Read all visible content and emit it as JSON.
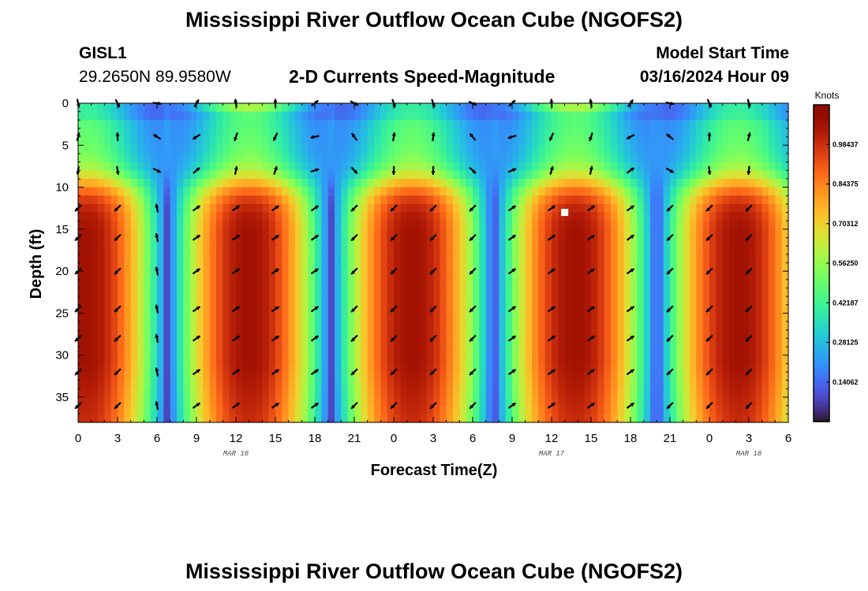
{
  "header": {
    "title": "Mississippi River Outflow Ocean Cube (NGOFS2)",
    "station_id": "GISL1",
    "coords": "29.2650N  89.9580W",
    "subtitle": "2-D Currents Speed-Magnitude",
    "model_start_label": "Model Start Time",
    "model_start_value": "03/16/2024 Hour 09"
  },
  "footer": {
    "title": "Mississippi River Outflow Ocean Cube (NGOFS2)"
  },
  "chart_data": {
    "type": "heatmap",
    "title": "2-D Currents Speed-Magnitude",
    "xlabel": "Forecast Time(Z)",
    "ylabel": "Depth (ft)",
    "x_ticks": [
      "0",
      "3",
      "6",
      "9",
      "12",
      "15",
      "18",
      "21",
      "0",
      "3",
      "6",
      "9",
      "12",
      "15",
      "18",
      "21",
      "0",
      "3",
      "6"
    ],
    "x_tick_hours": [
      0,
      3,
      6,
      9,
      12,
      15,
      18,
      21,
      24,
      27,
      30,
      33,
      36,
      39,
      42,
      45,
      48,
      51,
      54
    ],
    "x_range_hours": [
      0,
      54
    ],
    "date_labels": [
      {
        "text": "MAR 16",
        "hour": 12
      },
      {
        "text": "MAR 17",
        "hour": 36
      },
      {
        "text": "MAR 18",
        "hour": 51
      }
    ],
    "y_ticks": [
      0,
      5,
      10,
      15,
      20,
      25,
      30,
      35
    ],
    "y_range_ft": [
      0,
      38
    ],
    "y_inverted": true,
    "colorbar": {
      "label": "Knots",
      "ticks": [
        "0.98437",
        "0.84375",
        "0.70312",
        "0.56250",
        "0.42187",
        "0.28125",
        "0.14062"
      ],
      "tick_values": [
        0.98437,
        0.84375,
        0.70312,
        0.5625,
        0.42187,
        0.28125,
        0.14062
      ],
      "range": [
        0,
        1.125
      ],
      "colormap": "turbo"
    },
    "vector_depths_ft": [
      0,
      4,
      8,
      12.5,
      16,
      20,
      24.5,
      28,
      32,
      36
    ],
    "vector_hours": [
      0,
      3,
      6,
      9,
      12,
      15,
      18,
      21,
      24,
      27,
      30,
      33,
      36,
      39,
      42,
      45,
      48,
      51
    ],
    "marker": {
      "hour": 37,
      "depth_ft": 13
    }
  }
}
